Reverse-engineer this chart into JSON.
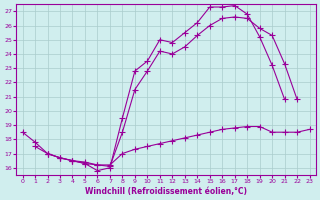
{
  "xlabel": "Windchill (Refroidissement éolien,°C)",
  "background_color": "#d0eeee",
  "grid_color": "#aacccc",
  "line_color": "#990099",
  "xlim": [
    -0.5,
    23.5
  ],
  "ylim": [
    15.5,
    27.5
  ],
  "xticks": [
    0,
    1,
    2,
    3,
    4,
    5,
    6,
    7,
    8,
    9,
    10,
    11,
    12,
    13,
    14,
    15,
    16,
    17,
    18,
    19,
    20,
    21,
    22,
    23
  ],
  "yticks": [
    16,
    17,
    18,
    19,
    20,
    21,
    22,
    23,
    24,
    25,
    26,
    27
  ],
  "curve1_x": [
    0,
    1,
    2,
    3,
    4,
    5,
    6,
    7,
    8,
    9,
    10,
    11,
    12,
    13,
    14,
    15,
    16,
    17,
    18,
    19,
    20,
    21
  ],
  "curve1_y": [
    18.5,
    17.8,
    17.0,
    16.7,
    16.5,
    16.3,
    15.8,
    16.0,
    19.5,
    22.8,
    23.5,
    25.0,
    24.8,
    25.5,
    26.2,
    27.3,
    27.3,
    27.4,
    26.8,
    25.2,
    23.2,
    20.8
  ],
  "curve2_x": [
    2,
    3,
    4,
    5,
    6,
    7,
    8,
    9,
    10,
    11,
    12,
    13,
    14,
    15,
    16,
    17,
    18,
    19,
    20,
    21,
    22
  ],
  "curve2_y": [
    17.0,
    16.7,
    16.5,
    16.3,
    16.2,
    16.1,
    18.5,
    21.5,
    22.8,
    24.2,
    24.0,
    24.5,
    25.3,
    26.0,
    26.5,
    26.6,
    26.5,
    25.8,
    25.3,
    23.3,
    20.8
  ],
  "curve3_x": [
    1,
    2,
    3,
    4,
    5,
    6,
    7,
    8,
    9,
    10,
    11,
    12,
    13,
    14,
    15,
    16,
    17,
    18,
    19,
    20,
    21,
    22,
    23
  ],
  "curve3_y": [
    17.5,
    17.0,
    16.7,
    16.5,
    16.4,
    16.2,
    16.2,
    17.0,
    17.3,
    17.5,
    17.7,
    17.9,
    18.1,
    18.3,
    18.5,
    18.7,
    18.8,
    18.9,
    18.9,
    18.5,
    18.5,
    18.5,
    18.7
  ]
}
